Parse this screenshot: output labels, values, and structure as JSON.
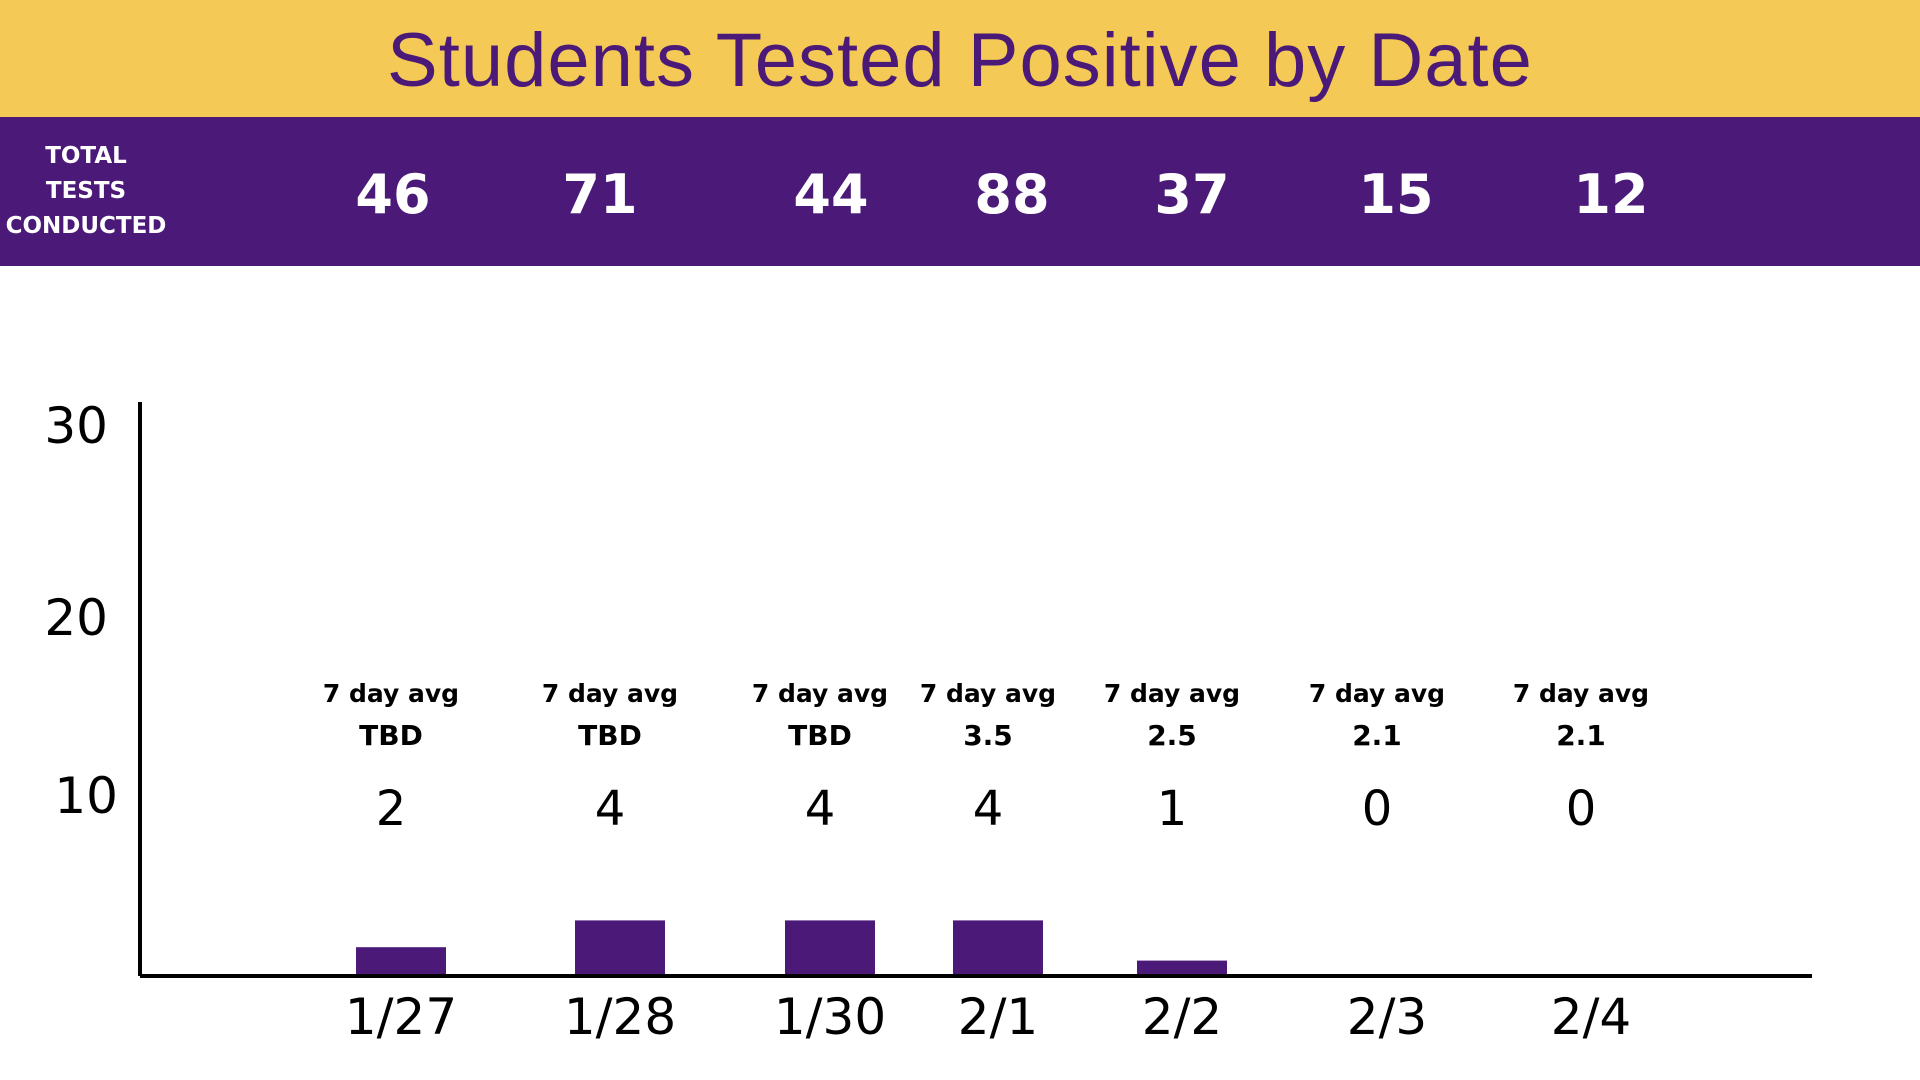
{
  "title": "Students Tested Positive by Date",
  "colors": {
    "header_background": "#F4C955",
    "title_text": "#4B1A79",
    "tests_bar_background": "#4B1A79",
    "bar_fill": "#4B1A79",
    "axis": "#000000"
  },
  "tests_conducted": {
    "label_lines": [
      "TOTAL",
      "TESTS",
      "CONDUCTED"
    ],
    "values": [
      "46",
      "71",
      "44",
      "88",
      "37",
      "15",
      "12"
    ]
  },
  "chart_data": {
    "type": "bar",
    "title": "",
    "xlabel": "",
    "ylabel": "",
    "categories": [
      "1/27",
      "1/28",
      "1/30",
      "2/1",
      "2/2",
      "2/3",
      "2/4"
    ],
    "values": [
      2,
      4,
      4,
      4,
      1,
      0,
      0
    ],
    "value_labels": [
      "2",
      "4",
      "4",
      "4",
      "1",
      "0",
      "0"
    ],
    "avg_caption": "7 day avg",
    "seven_day_avg": [
      "TBD",
      "TBD",
      "TBD",
      "3.5",
      "2.5",
      "2.1",
      "2.1"
    ],
    "y_ticks": [
      "10",
      "20",
      "30"
    ],
    "grid": false,
    "legend": "none"
  }
}
